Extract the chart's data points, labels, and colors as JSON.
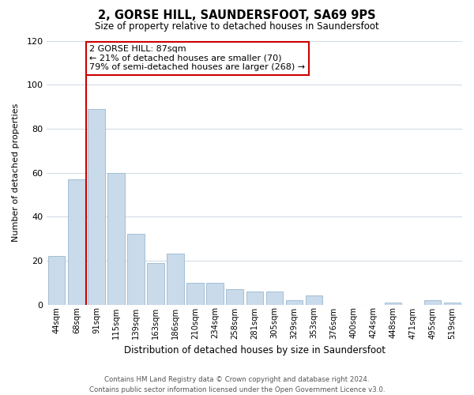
{
  "title": "2, GORSE HILL, SAUNDERSFOOT, SA69 9PS",
  "subtitle": "Size of property relative to detached houses in Saundersfoot",
  "xlabel": "Distribution of detached houses by size in Saundersfoot",
  "ylabel": "Number of detached properties",
  "bar_labels": [
    "44sqm",
    "68sqm",
    "91sqm",
    "115sqm",
    "139sqm",
    "163sqm",
    "186sqm",
    "210sqm",
    "234sqm",
    "258sqm",
    "281sqm",
    "305sqm",
    "329sqm",
    "353sqm",
    "376sqm",
    "400sqm",
    "424sqm",
    "448sqm",
    "471sqm",
    "495sqm",
    "519sqm"
  ],
  "bar_values": [
    22,
    57,
    89,
    60,
    32,
    19,
    23,
    10,
    10,
    7,
    6,
    6,
    2,
    4,
    0,
    0,
    0,
    1,
    0,
    2,
    1
  ],
  "bar_color": "#c9daea",
  "bar_edge_color": "#9ab8d0",
  "highlight_line_index": 2,
  "highlight_line_color": "#cc0000",
  "ylim": [
    0,
    120
  ],
  "yticks": [
    0,
    20,
    40,
    60,
    80,
    100,
    120
  ],
  "annotation_line1": "2 GORSE HILL: 87sqm",
  "annotation_line2": "← 21% of detached houses are smaller (70)",
  "annotation_line3": "79% of semi-detached houses are larger (268) →",
  "annotation_box_color": "#ffffff",
  "annotation_box_edge_color": "#cc0000",
  "footer_line1": "Contains HM Land Registry data © Crown copyright and database right 2024.",
  "footer_line2": "Contains public sector information licensed under the Open Government Licence v3.0.",
  "background_color": "#ffffff",
  "grid_color": "#d4dde6"
}
